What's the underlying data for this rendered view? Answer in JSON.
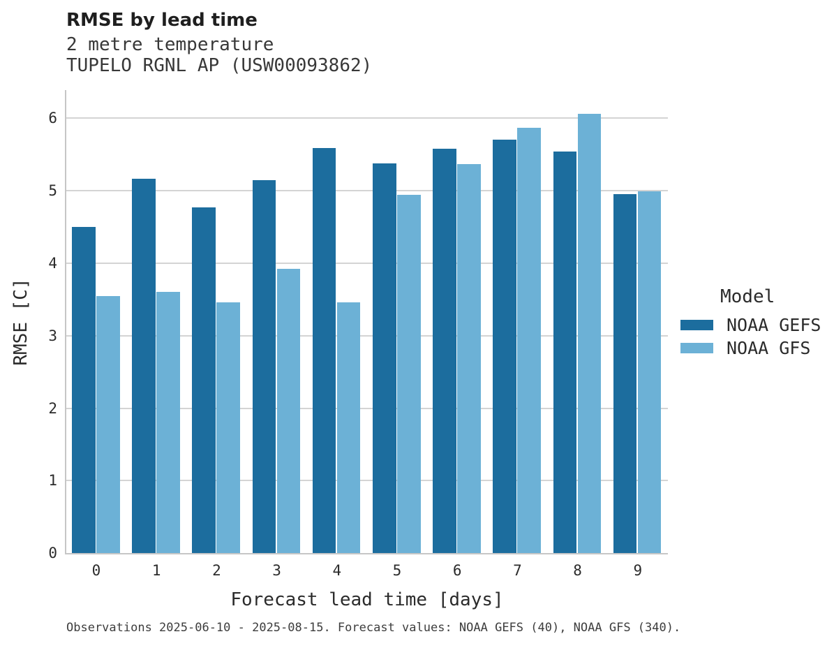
{
  "figure": {
    "title": "RMSE by lead time",
    "subtitle_line1": "2 metre temperature",
    "subtitle_line2": "TUPELO RGNL AP (USW00093862)",
    "caption": "Observations 2025-06-10 - 2025-08-15. Forecast values: NOAA GEFS (40), NOAA GFS (340)."
  },
  "chart_data": {
    "type": "bar",
    "title": "RMSE by lead time",
    "subtitle": [
      "2 metre temperature",
      "TUPELO RGNL AP (USW00093862)"
    ],
    "categories": [
      "0",
      "1",
      "2",
      "3",
      "4",
      "5",
      "6",
      "7",
      "8",
      "9"
    ],
    "series": [
      {
        "name": "NOAA GEFS",
        "color": "#1c6d9e",
        "values": [
          4.5,
          5.17,
          4.77,
          5.15,
          5.59,
          5.38,
          5.58,
          5.71,
          5.54,
          4.95
        ]
      },
      {
        "name": "NOAA GFS",
        "color": "#6cb1d6",
        "values": [
          3.55,
          3.6,
          3.46,
          3.92,
          3.46,
          4.94,
          5.37,
          5.87,
          6.06,
          4.99
        ]
      }
    ],
    "xlabel": "Forecast lead time [days]",
    "ylabel": "RMSE [C]",
    "ylim": [
      0,
      6.39
    ],
    "yticks": [
      0,
      1,
      2,
      3,
      4,
      5,
      6
    ],
    "grid": "horizontal",
    "legend": {
      "title": "Model",
      "position": "right"
    }
  },
  "colors": {
    "noaa_gefs": "#1c6d9e",
    "noaa_gfs": "#6cb1d6",
    "gridline": "#d4d4d4",
    "spine": "#c6c6c6"
  }
}
